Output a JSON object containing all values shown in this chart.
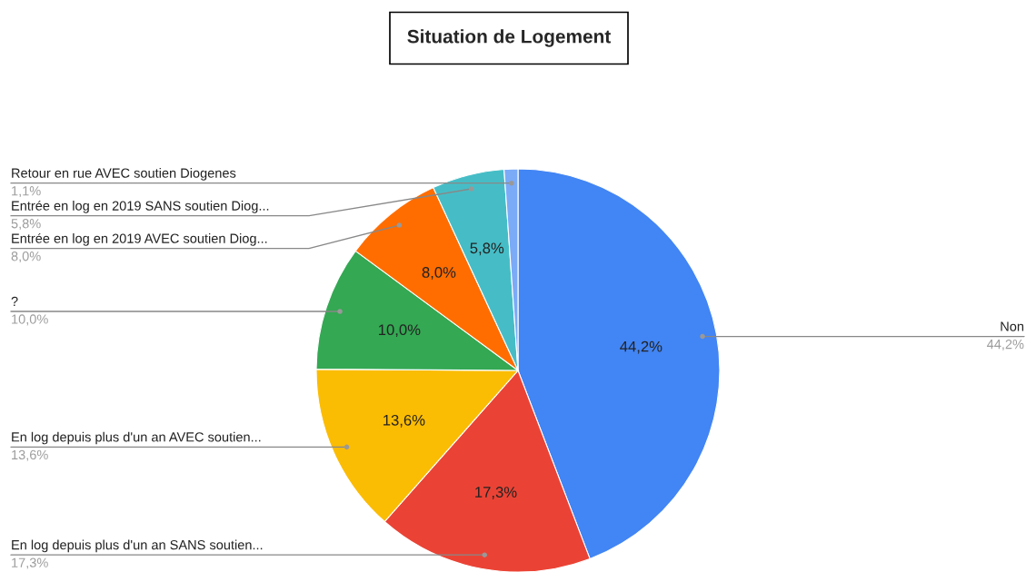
{
  "chart_data": {
    "type": "pie",
    "title": "Situation de Logement",
    "categories": [
      "Non",
      "En log depuis plus d'un an SANS soutien...",
      "En log depuis plus d'un an AVEC soutien...",
      "?",
      "Entrée en log en 2019 AVEC soutien Diog...",
      "Entrée en log en 2019 SANS soutien Diog...",
      "Retour en rue AVEC soutien Diogenes"
    ],
    "values": [
      44.2,
      17.3,
      13.6,
      10.0,
      8.0,
      5.8,
      1.1
    ],
    "colors": [
      "#4285f4",
      "#ea4335",
      "#fbbc04",
      "#34a853",
      "#ff6d01",
      "#46bdc6",
      "#7baaf7"
    ],
    "value_labels": [
      "44,2%",
      "17,3%",
      "13,6%",
      "10,0%",
      "8,0%",
      "5,8%",
      "1,1%"
    ]
  }
}
